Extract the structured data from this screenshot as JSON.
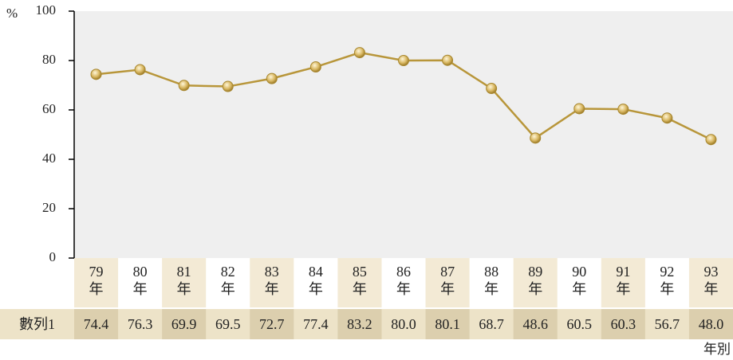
{
  "chart_data": {
    "type": "line",
    "y_unit": "%",
    "x_label": "年別",
    "categories": [
      "79\n年",
      "80\n年",
      "81\n年",
      "82\n年",
      "83\n年",
      "84\n年",
      "85\n年",
      "86\n年",
      "87\n年",
      "88\n年",
      "89\n年",
      "90\n年",
      "91\n年",
      "92\n年",
      "93\n年"
    ],
    "series": [
      {
        "name": "數列1",
        "color": "#b8963a",
        "values": [
          74.4,
          76.3,
          69.9,
          69.5,
          72.7,
          77.4,
          83.2,
          80.0,
          80.1,
          68.7,
          48.6,
          60.5,
          60.3,
          56.7,
          48.0
        ],
        "value_labels": [
          "74.4",
          "76.3",
          "69.9",
          "69.5",
          "72.7",
          "77.4",
          "83.2",
          "80.0",
          "80.1",
          "68.7",
          "48.6",
          "60.5",
          "60.3",
          "56.7",
          "48.0"
        ]
      }
    ],
    "ylim": [
      0,
      100
    ],
    "yticks": [
      0,
      20,
      40,
      60,
      80,
      100
    ],
    "grid": false
  }
}
